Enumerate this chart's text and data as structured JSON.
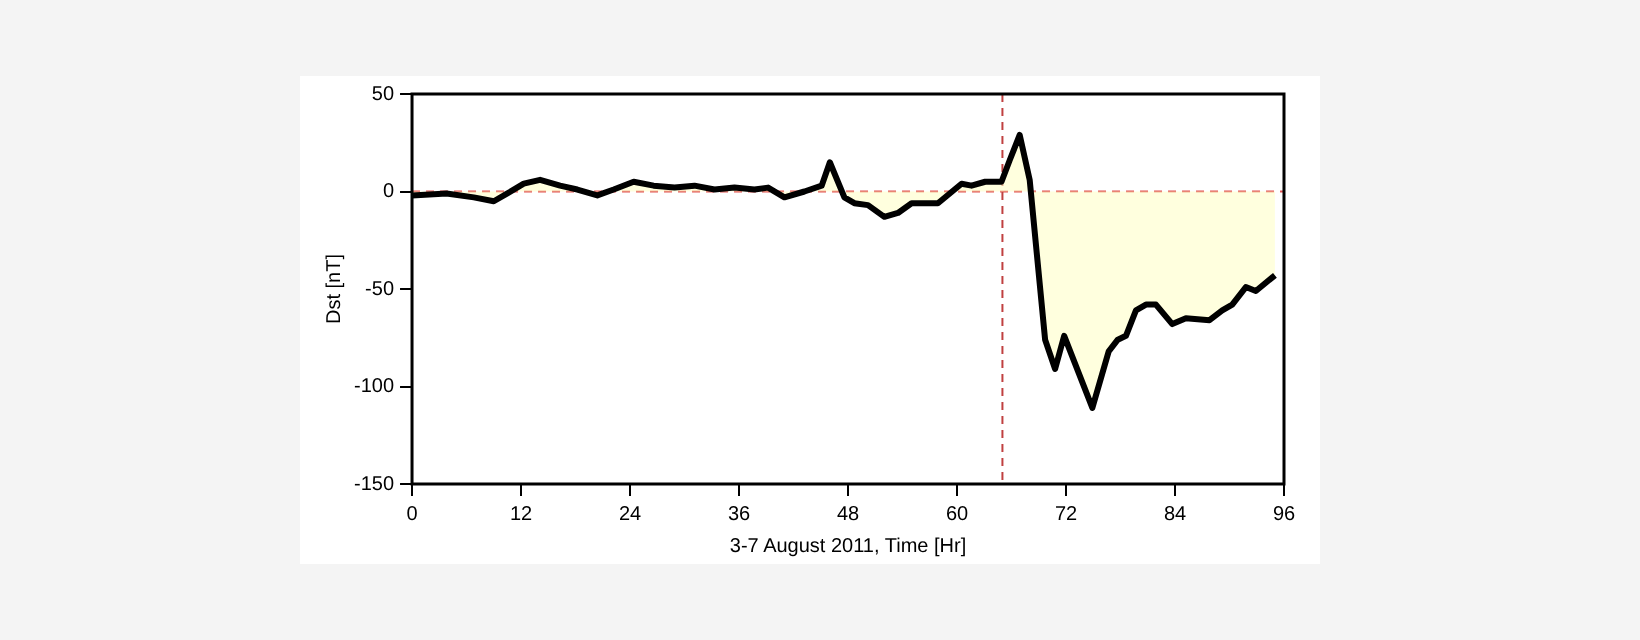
{
  "chart_data": {
    "type": "area",
    "xlabel": "3-7 August 2011, Time [Hr]",
    "ylabel": "Dst [nT]",
    "xlim": [
      0,
      96
    ],
    "xticks": [
      0,
      12,
      24,
      36,
      48,
      60,
      72,
      84,
      96
    ],
    "ylim": [
      -150,
      50
    ],
    "yticks": [
      -150,
      -100,
      -50,
      0,
      50
    ],
    "grid": false,
    "legend": false,
    "marker": "none",
    "line_style": "solid",
    "ref_lines": [
      {
        "axis": "y",
        "value": 0,
        "color": "#e05050",
        "line_style": "dashed"
      },
      {
        "axis": "x",
        "value": 65,
        "color": "#c04040",
        "line_style": "dashed"
      }
    ],
    "series": [
      {
        "color": "#000000",
        "x": [
          0,
          3.8,
          6.8,
          9,
          10.5,
          12.3,
          14.1,
          16.3,
          18.2,
          20.4,
          22.2,
          24.4,
          26.6,
          28.9,
          31.1,
          33.3,
          35.5,
          37.7,
          39.2,
          41,
          43.2,
          45.1,
          46,
          47.6,
          48.7,
          50.2,
          52,
          53.5,
          55,
          57.9,
          60.5,
          61.6,
          63.1,
          64.9,
          65.8,
          66.9,
          68,
          69.7,
          70.8,
          71.8,
          74.9,
          76.7,
          77.7,
          78.6,
          79.7,
          80.8,
          81.9,
          83.7,
          85.2,
          87.8,
          89.2,
          90.3,
          91.8,
          92.9,
          95
        ],
        "values": [
          -2,
          -1,
          -3,
          -5,
          -1,
          4,
          6,
          3,
          1,
          -2,
          1,
          5,
          3,
          2,
          3,
          1,
          2,
          1,
          2,
          -3,
          0,
          3,
          15,
          -3,
          -6,
          -7,
          -13,
          -11,
          -6,
          -6,
          4,
          3,
          5,
          5,
          16,
          29,
          6,
          -76,
          -91,
          -74,
          -111,
          -82,
          -76,
          -74,
          -61,
          -58,
          -58,
          -68,
          -65,
          -66,
          -61,
          -58,
          -49,
          -51,
          -43
        ]
      }
    ]
  }
}
